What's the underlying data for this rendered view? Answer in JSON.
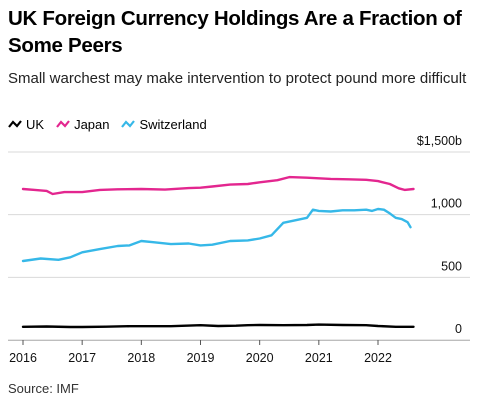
{
  "title": "UK Foreign Currency Holdings Are a Fraction of Some Peers",
  "subtitle": "Small warchest may make intervention to protect pound more difficult",
  "source": "Source: IMF",
  "chart_data": {
    "type": "line",
    "x_axis": {
      "min": 2016.0,
      "max": 2022.6,
      "ticks": [
        2016,
        2017,
        2018,
        2019,
        2020,
        2021,
        2022
      ],
      "tick_labels": [
        "2016",
        "2017",
        "2018",
        "2019",
        "2020",
        "2021",
        "2022"
      ]
    },
    "y_axis": {
      "min": 0,
      "max": 1500,
      "ticks": [
        0,
        500,
        1000,
        1500
      ],
      "tick_labels": [
        "0",
        "500",
        "1,000",
        "$1,500b"
      ],
      "position": "right"
    },
    "grid": true,
    "legend_placement": "top-left",
    "series": [
      {
        "name": "UK",
        "color": "#000000",
        "x": [
          2016.0,
          2016.4,
          2016.8,
          2017.0,
          2017.4,
          2017.8,
          2018.0,
          2018.5,
          2019.0,
          2019.3,
          2019.6,
          2019.8,
          2020.0,
          2020.4,
          2020.8,
          2021.0,
          2021.4,
          2021.8,
          2022.0,
          2022.3,
          2022.6
        ],
        "y": [
          105,
          108,
          104,
          104,
          106,
          110,
          110,
          110,
          118,
          112,
          114,
          118,
          120,
          118,
          120,
          123,
          120,
          118,
          112,
          105,
          105
        ]
      },
      {
        "name": "Japan",
        "color": "#e3268f",
        "x": [
          2016.0,
          2016.2,
          2016.4,
          2016.5,
          2016.7,
          2017.0,
          2017.3,
          2017.6,
          2018.0,
          2018.4,
          2018.8,
          2019.0,
          2019.2,
          2019.5,
          2019.8,
          2020.0,
          2020.3,
          2020.5,
          2020.8,
          2021.0,
          2021.2,
          2021.5,
          2021.8,
          2022.0,
          2022.2,
          2022.35,
          2022.45,
          2022.6
        ],
        "y": [
          1205,
          1198,
          1190,
          1165,
          1180,
          1180,
          1198,
          1202,
          1205,
          1200,
          1212,
          1215,
          1225,
          1240,
          1245,
          1258,
          1275,
          1300,
          1295,
          1290,
          1285,
          1282,
          1278,
          1268,
          1245,
          1210,
          1198,
          1205
        ]
      },
      {
        "name": "Switzerland",
        "color": "#36b8e8",
        "x": [
          2016.0,
          2016.3,
          2016.6,
          2016.8,
          2017.0,
          2017.3,
          2017.6,
          2017.8,
          2018.0,
          2018.2,
          2018.5,
          2018.8,
          2019.0,
          2019.2,
          2019.5,
          2019.8,
          2020.0,
          2020.2,
          2020.4,
          2020.6,
          2020.8,
          2020.9,
          2021.0,
          2021.2,
          2021.4,
          2021.6,
          2021.8,
          2021.9,
          2022.0,
          2022.1,
          2022.2,
          2022.3,
          2022.4,
          2022.5,
          2022.55
        ],
        "y": [
          630,
          650,
          640,
          660,
          700,
          725,
          750,
          755,
          790,
          780,
          765,
          770,
          755,
          760,
          790,
          795,
          810,
          835,
          935,
          955,
          975,
          1040,
          1030,
          1025,
          1035,
          1035,
          1040,
          1030,
          1045,
          1040,
          1010,
          975,
          965,
          940,
          900
        ]
      }
    ]
  }
}
